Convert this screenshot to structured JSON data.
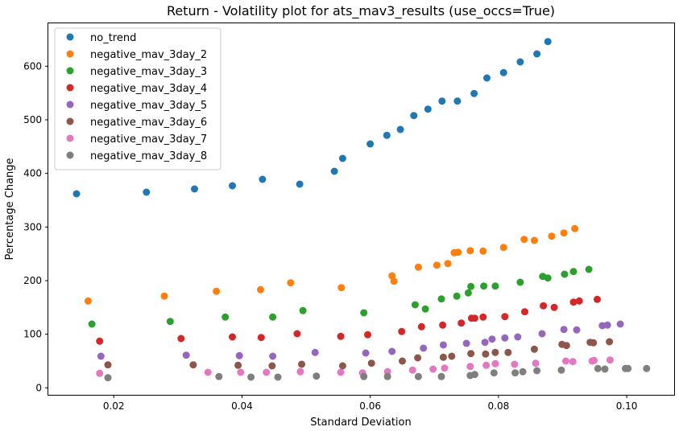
{
  "chart_data": {
    "type": "scatter",
    "title": "Return - Volatility plot for ats_mav3_results (use_occs=True)",
    "xlabel": "Standard Deviation",
    "ylabel": "Percentage Change",
    "xlim": [
      0.0098,
      0.1074
    ],
    "ylim": [
      -13,
      680
    ],
    "xticks": [
      0.02,
      0.04,
      0.06,
      0.08,
      0.1
    ],
    "xtick_labels": [
      "0.02",
      "0.04",
      "0.06",
      "0.08",
      "0.10"
    ],
    "yticks": [
      0,
      100,
      200,
      300,
      400,
      500,
      600
    ],
    "ytick_labels": [
      "0",
      "100",
      "200",
      "300",
      "400",
      "500",
      "600"
    ],
    "grid": false,
    "legend_position": "top-left",
    "series": [
      {
        "name": "no_trend",
        "color": "#1f77b4",
        "points": [
          [
            0.0142,
            362
          ],
          [
            0.0251,
            365
          ],
          [
            0.0326,
            371
          ],
          [
            0.0385,
            377
          ],
          [
            0.0432,
            389
          ],
          [
            0.049,
            380
          ],
          [
            0.0544,
            404
          ],
          [
            0.0557,
            428
          ],
          [
            0.06,
            455
          ],
          [
            0.0626,
            471
          ],
          [
            0.0647,
            482
          ],
          [
            0.0668,
            508
          ],
          [
            0.069,
            520
          ],
          [
            0.0712,
            535
          ],
          [
            0.0736,
            535
          ],
          [
            0.0762,
            549
          ],
          [
            0.0782,
            578
          ],
          [
            0.0808,
            588
          ],
          [
            0.0834,
            608
          ],
          [
            0.086,
            623
          ],
          [
            0.0877,
            646
          ]
        ]
      },
      {
        "name": "negative_mav_3day_2",
        "color": "#ff7f0e",
        "points": [
          [
            0.016,
            162
          ],
          [
            0.0279,
            171
          ],
          [
            0.036,
            180
          ],
          [
            0.0429,
            183
          ],
          [
            0.0476,
            196
          ],
          [
            0.0555,
            187
          ],
          [
            0.0634,
            209
          ],
          [
            0.0637,
            199
          ],
          [
            0.0675,
            225
          ],
          [
            0.0704,
            229
          ],
          [
            0.0721,
            232
          ],
          [
            0.0731,
            252
          ],
          [
            0.0737,
            253
          ],
          [
            0.0756,
            256
          ],
          [
            0.0776,
            255
          ],
          [
            0.0808,
            262
          ],
          [
            0.084,
            277
          ],
          [
            0.0856,
            275
          ],
          [
            0.0883,
            283
          ],
          [
            0.0902,
            289
          ],
          [
            0.0919,
            297
          ]
        ]
      },
      {
        "name": "negative_mav_3day_3",
        "color": "#2ca02c",
        "points": [
          [
            0.0166,
            119
          ],
          [
            0.0288,
            124
          ],
          [
            0.0374,
            132
          ],
          [
            0.0448,
            132
          ],
          [
            0.0495,
            144
          ],
          [
            0.059,
            140
          ],
          [
            0.067,
            155
          ],
          [
            0.0686,
            147
          ],
          [
            0.0711,
            166
          ],
          [
            0.0735,
            171
          ],
          [
            0.0753,
            177
          ],
          [
            0.0757,
            189
          ],
          [
            0.0777,
            190
          ],
          [
            0.0795,
            190
          ],
          [
            0.0834,
            197
          ],
          [
            0.0869,
            208
          ],
          [
            0.0877,
            205
          ],
          [
            0.0903,
            212
          ],
          [
            0.0917,
            217
          ],
          [
            0.0941,
            221
          ]
        ]
      },
      {
        "name": "negative_mav_3day_4",
        "color": "#d62728",
        "points": [
          [
            0.0178,
            87
          ],
          [
            0.0305,
            92
          ],
          [
            0.0385,
            95
          ],
          [
            0.043,
            94
          ],
          [
            0.0486,
            101
          ],
          [
            0.0554,
            96
          ],
          [
            0.0596,
            99
          ],
          [
            0.0649,
            105
          ],
          [
            0.068,
            114
          ],
          [
            0.0713,
            117
          ],
          [
            0.0742,
            121
          ],
          [
            0.0758,
            130
          ],
          [
            0.0763,
            130
          ],
          [
            0.0776,
            132
          ],
          [
            0.081,
            133
          ],
          [
            0.0841,
            142
          ],
          [
            0.087,
            153
          ],
          [
            0.0887,
            150
          ],
          [
            0.0917,
            160
          ],
          [
            0.0926,
            162
          ],
          [
            0.0954,
            165
          ]
        ]
      },
      {
        "name": "negative_mav_3day_5",
        "color": "#9467bd",
        "points": [
          [
            0.018,
            59
          ],
          [
            0.0313,
            61
          ],
          [
            0.0396,
            60
          ],
          [
            0.0448,
            59
          ],
          [
            0.0514,
            66
          ],
          [
            0.0593,
            65
          ],
          [
            0.0634,
            68
          ],
          [
            0.0683,
            74
          ],
          [
            0.0714,
            80
          ],
          [
            0.075,
            83
          ],
          [
            0.0779,
            85
          ],
          [
            0.079,
            91
          ],
          [
            0.081,
            93
          ],
          [
            0.083,
            95
          ],
          [
            0.0868,
            101
          ],
          [
            0.0902,
            109
          ],
          [
            0.0922,
            108
          ],
          [
            0.0962,
            116
          ],
          [
            0.097,
            117
          ],
          [
            0.099,
            119
          ]
        ]
      },
      {
        "name": "negative_mav_3day_6",
        "color": "#8c564b",
        "points": [
          [
            0.0191,
            43
          ],
          [
            0.0324,
            43
          ],
          [
            0.0394,
            42
          ],
          [
            0.0447,
            41
          ],
          [
            0.0493,
            44
          ],
          [
            0.0557,
            41
          ],
          [
            0.0602,
            46
          ],
          [
            0.065,
            50
          ],
          [
            0.0674,
            56
          ],
          [
            0.0714,
            57
          ],
          [
            0.0727,
            59
          ],
          [
            0.0757,
            64
          ],
          [
            0.078,
            63
          ],
          [
            0.0795,
            66
          ],
          [
            0.0815,
            66
          ],
          [
            0.0856,
            72
          ],
          [
            0.0899,
            81
          ],
          [
            0.0906,
            79
          ],
          [
            0.0943,
            85
          ],
          [
            0.0948,
            84
          ],
          [
            0.0973,
            86
          ]
        ]
      },
      {
        "name": "negative_mav_3day_7",
        "color": "#e377c2",
        "points": [
          [
            0.0178,
            27
          ],
          [
            0.0347,
            29
          ],
          [
            0.0398,
            29
          ],
          [
            0.0438,
            29
          ],
          [
            0.0491,
            30
          ],
          [
            0.0554,
            29
          ],
          [
            0.0588,
            28
          ],
          [
            0.0627,
            30
          ],
          [
            0.0666,
            33
          ],
          [
            0.0698,
            35
          ],
          [
            0.0716,
            37
          ],
          [
            0.0756,
            40
          ],
          [
            0.0781,
            42
          ],
          [
            0.0795,
            45
          ],
          [
            0.0825,
            44
          ],
          [
            0.0858,
            46
          ],
          [
            0.0905,
            50
          ],
          [
            0.0916,
            49
          ],
          [
            0.0946,
            50
          ],
          [
            0.0949,
            51
          ],
          [
            0.0974,
            52
          ]
        ]
      },
      {
        "name": "negative_mav_3day_8",
        "color": "#7f7f7f",
        "points": [
          [
            0.0191,
            19
          ],
          [
            0.0364,
            21
          ],
          [
            0.0414,
            20
          ],
          [
            0.0456,
            20
          ],
          [
            0.0516,
            22
          ],
          [
            0.059,
            21
          ],
          [
            0.0627,
            21
          ],
          [
            0.0675,
            21
          ],
          [
            0.0711,
            21
          ],
          [
            0.0756,
            23
          ],
          [
            0.0763,
            25
          ],
          [
            0.0793,
            28
          ],
          [
            0.0826,
            28
          ],
          [
            0.0838,
            30
          ],
          [
            0.086,
            32
          ],
          [
            0.0898,
            33
          ],
          [
            0.0955,
            36
          ],
          [
            0.0966,
            35
          ],
          [
            0.0998,
            36
          ],
          [
            0.1002,
            36
          ],
          [
            0.1031,
            36
          ]
        ]
      }
    ]
  }
}
